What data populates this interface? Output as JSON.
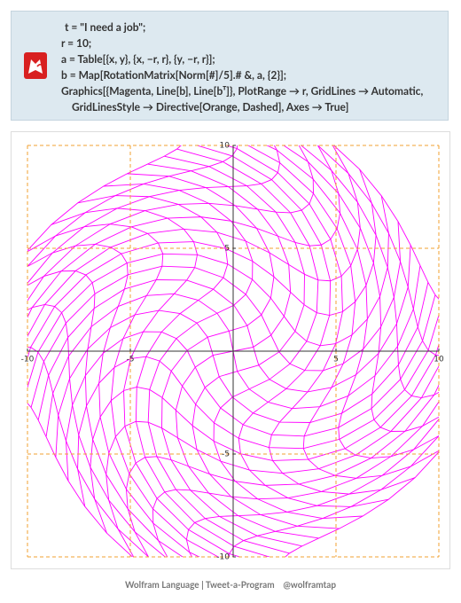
{
  "code": {
    "lines": [
      "t = \"I need a job\";",
      "r = 10;",
      "a = Table[{x, y}, {x, −r, r}, {y, −r, r}];",
      "b = Map[RotationMatrix[Norm[#]/5].# &, a, {2}];",
      "Graphics[{Magenta, Line[b], Line[bᵀ]}, PlotRange → r, GridLines → Automatic,",
      "GridLinesStyle → Directive[Orange, Dashed], Axes → True]"
    ]
  },
  "graphics": {
    "xlim": [
      -10,
      10
    ],
    "ylim": [
      -10,
      10
    ],
    "xticks": [
      -10,
      -5,
      5,
      10
    ],
    "yticks": [
      -10,
      -5,
      5,
      10
    ],
    "color": "#ff00ff",
    "grid_color": "#f0a030"
  },
  "footer": {
    "left": "Wolfram Language | Tweet-a-Program",
    "right": "@wolframtap"
  }
}
